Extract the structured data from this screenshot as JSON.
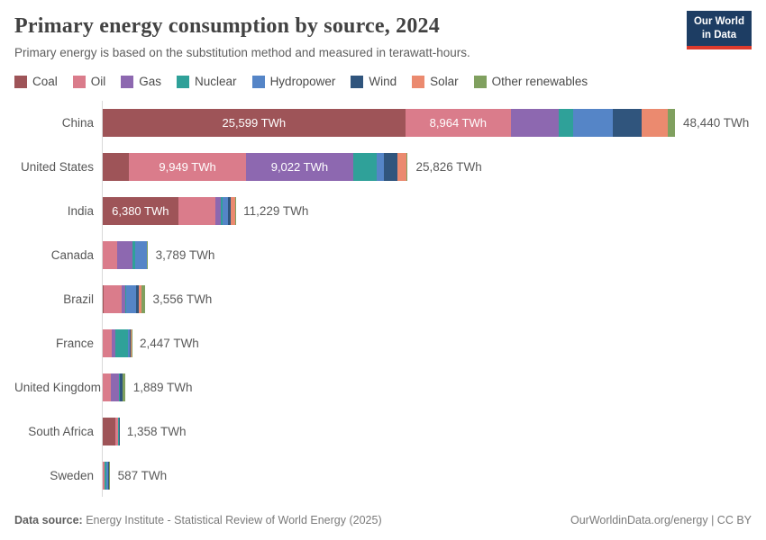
{
  "header": {
    "title": "Primary energy consumption by source, 2024",
    "subtitle": "Primary energy is based on the substitution method and measured in terawatt-hours.",
    "logo": {
      "line1": "Our World",
      "line2": "in Data",
      "bg_color": "#1D3D63",
      "accent_color": "#DC3A2C"
    }
  },
  "chart_data": {
    "type": "bar",
    "stacked": true,
    "orientation": "horizontal",
    "unit": "TWh",
    "x_max_value": 48440,
    "grid": false,
    "legend_position": "top",
    "series": [
      {
        "name": "Coal",
        "color": "#9E5458"
      },
      {
        "name": "Oil",
        "color": "#DA7C8B"
      },
      {
        "name": "Gas",
        "color": "#8D68B0"
      },
      {
        "name": "Nuclear",
        "color": "#2FA199"
      },
      {
        "name": "Hydropower",
        "color": "#5585C7"
      },
      {
        "name": "Wind",
        "color": "#30557D"
      },
      {
        "name": "Solar",
        "color": "#EB8A6F"
      },
      {
        "name": "Other renewables",
        "color": "#80A05F"
      }
    ],
    "rows": [
      {
        "country": "China",
        "total": 48440,
        "total_label": "48,440 TWh",
        "values": {
          "Coal": 25599,
          "Oil": 8964,
          "Gas": 4048,
          "Nuclear": 1202,
          "Hydropower": 3345,
          "Wind": 2438,
          "Solar": 2234,
          "Other renewables": 610
        },
        "segment_labels": {
          "Coal": "25,599 TWh",
          "Oil": "8,964 TWh"
        }
      },
      {
        "country": "United States",
        "total": 25826,
        "total_label": "25,826 TWh",
        "values": {
          "Coal": 2202,
          "Oil": 9949,
          "Gas": 9022,
          "Nuclear": 2025,
          "Hydropower": 640,
          "Wind": 1100,
          "Solar": 740,
          "Other renewables": 148
        },
        "segment_labels": {
          "Oil": "9,949 TWh",
          "Gas": "9,022 TWh"
        }
      },
      {
        "country": "India",
        "total": 11229,
        "total_label": "11,229 TWh",
        "values": {
          "Coal": 6380,
          "Oil": 3170,
          "Gas": 475,
          "Nuclear": 151,
          "Hydropower": 418,
          "Wind": 232,
          "Solar": 359,
          "Other renewables": 44
        },
        "segment_labels": {
          "Coal": "6,380 TWh"
        }
      },
      {
        "country": "Canada",
        "total": 3789,
        "total_label": "3,789 TWh",
        "values": {
          "Coal": 30,
          "Oil": 1220,
          "Gas": 1275,
          "Nuclear": 250,
          "Hydropower": 930,
          "Wind": 60,
          "Solar": 15,
          "Other renewables": 9
        }
      },
      {
        "country": "Brazil",
        "total": 3556,
        "total_label": "3,556 TWh",
        "values": {
          "Coal": 100,
          "Oil": 1500,
          "Gas": 310,
          "Nuclear": 40,
          "Hydropower": 850,
          "Wind": 255,
          "Solar": 205,
          "Other renewables": 296
        }
      },
      {
        "country": "France",
        "total": 2447,
        "total_label": "2,447 TWh",
        "values": {
          "Coal": 25,
          "Oil": 730,
          "Gas": 300,
          "Nuclear": 1090,
          "Hydropower": 160,
          "Wind": 85,
          "Solar": 35,
          "Other renewables": 22
        }
      },
      {
        "country": "United Kingdom",
        "total": 1889,
        "total_label": "1,889 TWh",
        "values": {
          "Coal": 17,
          "Oil": 697,
          "Gas": 651,
          "Nuclear": 97,
          "Hydropower": 14,
          "Wind": 185,
          "Solar": 35,
          "Other renewables": 193
        }
      },
      {
        "country": "South Africa",
        "total": 1358,
        "total_label": "1,358 TWh",
        "values": {
          "Coal": 1070,
          "Oil": 230,
          "Gas": 33,
          "Nuclear": 10,
          "Hydropower": 2,
          "Wind": 8,
          "Solar": 5,
          "Other renewables": 0
        }
      },
      {
        "country": "Sweden",
        "total": 587,
        "total_label": "587 TWh",
        "values": {
          "Coal": 8,
          "Oil": 135,
          "Gas": 4,
          "Nuclear": 125,
          "Hydropower": 170,
          "Wind": 95,
          "Solar": 5,
          "Other renewables": 45
        }
      }
    ]
  },
  "footer": {
    "data_source_label": "Data source:",
    "data_source_text": "Energy Institute - Statistical Review of World Energy (2025)",
    "right_text": "OurWorldinData.org/energy | CC BY"
  }
}
